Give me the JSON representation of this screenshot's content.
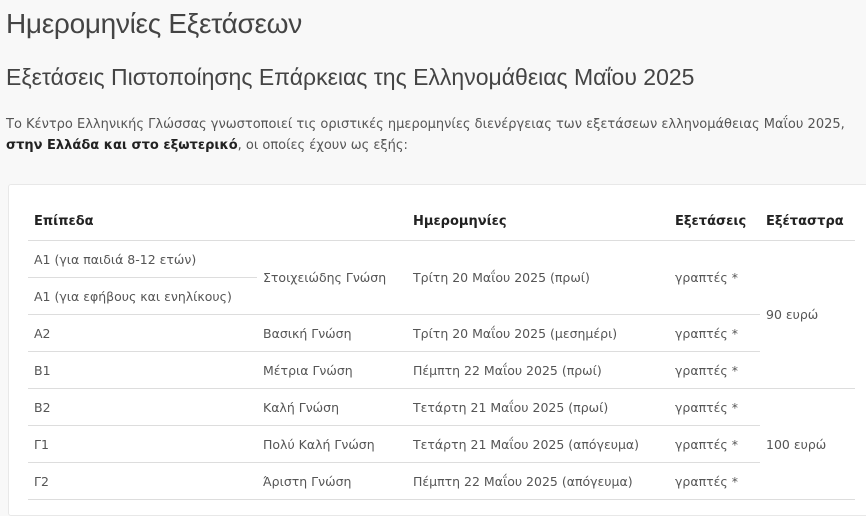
{
  "title": "Ημερομηνίες Εξετάσεων",
  "subtitle": "Εξετάσεις Πιστοποίησης Επάρκειας της Ελληνομάθειας Μαΐου 2025",
  "intro": {
    "text_before": "Το Κέντρο Ελληνικής Γλώσσας γνωστοποιεί τις οριστικές ημερομηνίες διενέργειας των εξετάσεων ελληνομάθειας Μαΐου 2025, ",
    "bold": "στην Ελλάδα και στο εξωτερικό",
    "text_after": ", οι οποίες έχουν ως εξής:"
  },
  "table": {
    "headers": [
      "Επίπεδα",
      "",
      "Ημερομηνίες",
      "Εξετάσεις",
      "Εξέταστρα"
    ],
    "rows": [
      {
        "level": "Α1 (για παιδιά 8-12 ετών)",
        "knowledge": "Στοιχειώδης Γνώση",
        "date": "Τρίτη 20 Μαΐου 2025 (πρωί)",
        "exams": "γραπτές *",
        "fee": "90 ευρώ"
      },
      {
        "level": "Α1 (για εφήβους και ενηλίκους)"
      },
      {
        "level": "Α2",
        "knowledge": "Βασική Γνώση",
        "date": "Τρίτη 20 Μαΐου 2025 (μεσημέρι)",
        "exams": "γραπτές *"
      },
      {
        "level": "Β1",
        "knowledge": "Μέτρια Γνώση",
        "date": "Πέμπτη 22 Μαΐου 2025 (πρωί)",
        "exams": "γραπτές *"
      },
      {
        "level": "Β2",
        "knowledge": "Καλή Γνώση",
        "date": "Τετάρτη 21 Μαΐου 2025 (πρωί)",
        "exams": "γραπτές *",
        "fee": "100 ευρώ"
      },
      {
        "level": "Γ1",
        "knowledge": "Πολύ Καλή Γνώση",
        "date": "Τετάρτη 21 Μαΐου 2025 (απόγευμα)",
        "exams": "γραπτές *"
      },
      {
        "level": "Γ2",
        "knowledge": "Άριστη Γνώση",
        "date": "Πέμπτη 22 Μαΐου 2025 (απόγευμα)",
        "exams": "γραπτές *"
      }
    ]
  }
}
